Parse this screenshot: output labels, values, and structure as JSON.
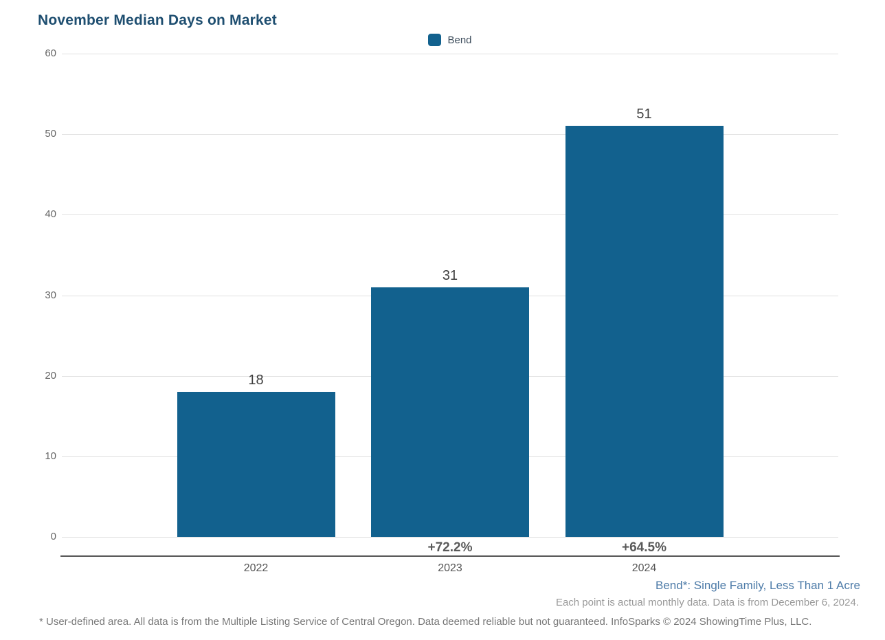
{
  "title": "November Median Days on Market",
  "legend": {
    "label": "Bend"
  },
  "colors": {
    "title": "#1e4e70",
    "bar": "#12618e",
    "gridline": "#e0e0e0",
    "axis_line": "#555555",
    "tick_label": "#666666",
    "value_label": "#3f3f3f",
    "pct_label": "#595959",
    "year_label": "#555555",
    "footnote_blue": "#4d7ba8",
    "footnote_gray": "#999999",
    "disclaimer_gray": "#777777"
  },
  "chart_data": {
    "type": "bar",
    "title": "November Median Days on Market",
    "categories": [
      "2022",
      "2023",
      "2024"
    ],
    "series": [
      {
        "name": "Bend",
        "values": [
          18,
          31,
          51
        ]
      }
    ],
    "value_labels": [
      "18",
      "31",
      "51"
    ],
    "pct_change_labels": [
      "",
      "+72.2%",
      "+64.5%"
    ],
    "xlabel": "",
    "ylabel": "",
    "ylim": [
      0,
      60
    ],
    "yticks": [
      0,
      10,
      20,
      30,
      40,
      50,
      60
    ],
    "grid": "horizontal",
    "legend_position": "top-center"
  },
  "footnotes": {
    "series_definition": "Bend*: Single Family, Less Than 1 Acre",
    "data_note": "Each point is actual monthly data. Data is from December 6, 2024.",
    "disclaimer": "* User-defined area. All data is from the Multiple Listing Service of Central Oregon. Data deemed reliable but not guaranteed. InfoSparks © 2024 ShowingTime Plus, LLC."
  }
}
